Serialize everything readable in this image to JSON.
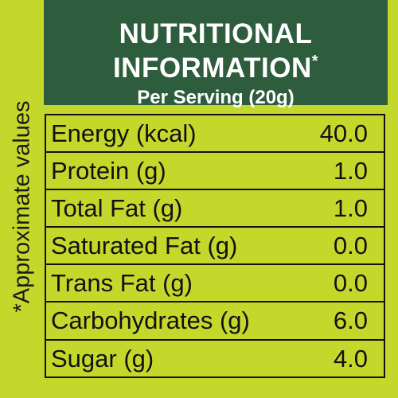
{
  "side_note": "*Approximate values",
  "header": {
    "title_line1": "NUTRITIONAL",
    "title_line2": "INFORMATION",
    "title_mark": "*",
    "subtitle": "Per Serving (20g)"
  },
  "table": {
    "rows": [
      [
        "Energy (kcal)",
        "40.0"
      ],
      [
        "Protein (g)",
        "1.0"
      ],
      [
        "Total Fat (g)",
        "1.0"
      ],
      [
        "Saturated Fat (g)",
        "0.0"
      ],
      [
        "Trans Fat (g)",
        "0.0"
      ],
      [
        "Carbohydrates (g)",
        "6.0"
      ],
      [
        "Sugar (g)",
        "4.0"
      ]
    ]
  }
}
